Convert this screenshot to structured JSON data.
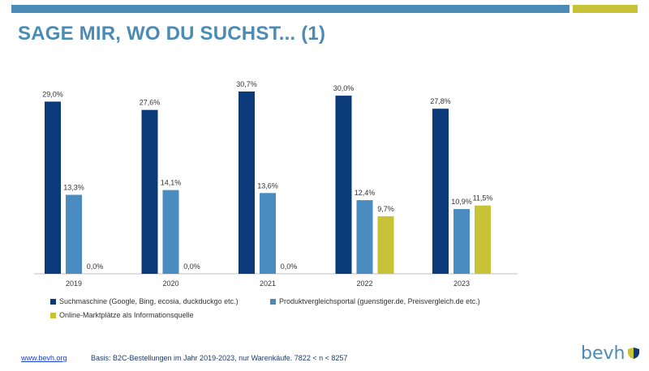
{
  "page": {
    "title": "SAGE MIR, WO DU SUCHST... (1)",
    "footer_link": "www.bevh.org",
    "footer_note": "Basis: B2C-Bestellungen im Jahr 2019-2023, nur Warenkäufe. 7822 < n < 8257",
    "logo_text": "bevh"
  },
  "colors": {
    "accent_blue": "#4b8bb5",
    "accent_gold": "#c8c236"
  },
  "chart_data": {
    "type": "bar",
    "categories": [
      "2019",
      "2020",
      "2021",
      "2022",
      "2023"
    ],
    "series": [
      {
        "name": "Suchmaschine (Google, Bing, ecosia, duckduckgo etc.)",
        "values": [
          29.0,
          27.6,
          30.7,
          30.0,
          27.8
        ],
        "labels": [
          "29,0%",
          "27,6%",
          "30,7%",
          "30,0%",
          "27,8%"
        ],
        "color": "#0b3a78"
      },
      {
        "name": "Produktvergleichsportal (guenstiger.de, Preisvergleich.de etc.)",
        "values": [
          13.3,
          14.1,
          13.6,
          12.4,
          10.9
        ],
        "labels": [
          "13,3%",
          "14,1%",
          "13,6%",
          "12,4%",
          "10,9%"
        ],
        "color": "#4a8cbf"
      },
      {
        "name": "Online-Marktplätze als Informationsquelle",
        "values": [
          0.0,
          0.0,
          0.0,
          9.7,
          11.5
        ],
        "labels": [
          "0,0%",
          "0,0%",
          "0,0%",
          "9,7%",
          "11,5%"
        ],
        "color": "#c8c236"
      }
    ],
    "legend_position": "bottom",
    "grid": false
  }
}
